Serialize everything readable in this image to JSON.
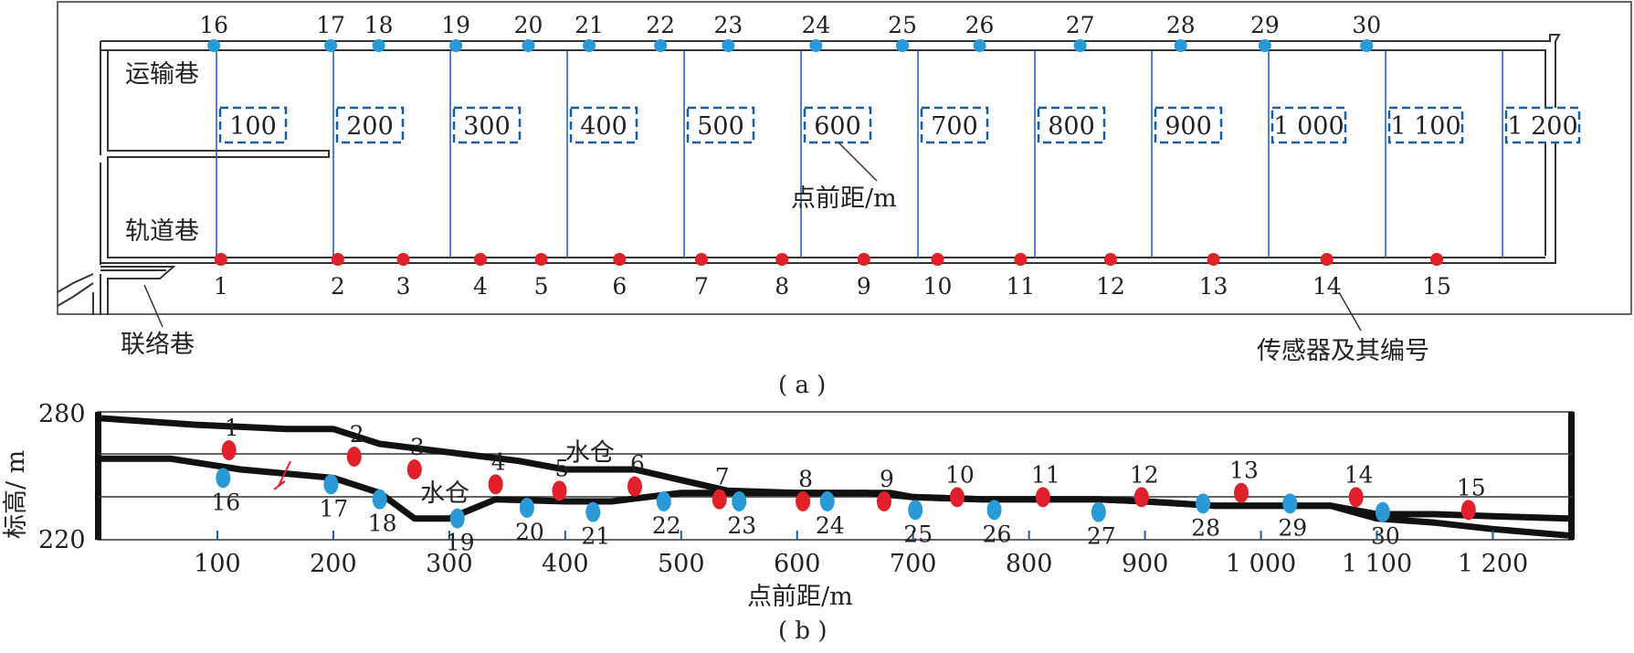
{
  "panel_a": {
    "caption": "( a )",
    "labels": {
      "transport_roadway": "运输巷",
      "track_roadway": "轨道巷",
      "link_roadway": "联络巷",
      "distance_unit": "点前距/m",
      "sensor_label": "传感器及其编号"
    },
    "distance_marks": [
      "100",
      "200",
      "300",
      "400",
      "500",
      "600",
      "700",
      "800",
      "900",
      "1 000",
      "1 100",
      "1 200"
    ],
    "top_sensors": [
      {
        "id": "16",
        "pos": 97
      },
      {
        "id": "17",
        "pos": 197
      },
      {
        "id": "18",
        "pos": 238
      },
      {
        "id": "19",
        "pos": 304
      },
      {
        "id": "20",
        "pos": 366
      },
      {
        "id": "21",
        "pos": 418
      },
      {
        "id": "22",
        "pos": 479
      },
      {
        "id": "23",
        "pos": 537
      },
      {
        "id": "24",
        "pos": 612
      },
      {
        "id": "25",
        "pos": 686
      },
      {
        "id": "26",
        "pos": 752
      },
      {
        "id": "27",
        "pos": 838
      },
      {
        "id": "28",
        "pos": 924
      },
      {
        "id": "29",
        "pos": 996
      },
      {
        "id": "30",
        "pos": 1083
      }
    ],
    "bottom_sensors": [
      {
        "id": "1",
        "pos": 103
      },
      {
        "id": "2",
        "pos": 203
      },
      {
        "id": "3",
        "pos": 259
      },
      {
        "id": "4",
        "pos": 325
      },
      {
        "id": "5",
        "pos": 377
      },
      {
        "id": "6",
        "pos": 444
      },
      {
        "id": "7",
        "pos": 514
      },
      {
        "id": "8",
        "pos": 583
      },
      {
        "id": "9",
        "pos": 653
      },
      {
        "id": "10",
        "pos": 716
      },
      {
        "id": "11",
        "pos": 787
      },
      {
        "id": "12",
        "pos": 864
      },
      {
        "id": "13",
        "pos": 952
      },
      {
        "id": "14",
        "pos": 1049
      },
      {
        "id": "15",
        "pos": 1143
      }
    ]
  },
  "panel_b": {
    "caption": "( b )",
    "xlabel": "点前距/m",
    "ylabel": "标高/ m",
    "ylim": [
      220,
      280
    ],
    "xlim": [
      0,
      1265
    ],
    "yticks": [
      "280",
      "220"
    ],
    "xticks": [
      {
        "label": "100",
        "value": 100
      },
      {
        "label": "200",
        "value": 200
      },
      {
        "label": "300",
        "value": 300
      },
      {
        "label": "400",
        "value": 400
      },
      {
        "label": "500",
        "value": 500
      },
      {
        "label": "600",
        "value": 600
      },
      {
        "label": "700",
        "value": 700
      },
      {
        "label": "800",
        "value": 800
      },
      {
        "label": "900",
        "value": 900
      },
      {
        "label": "1 000",
        "value": 1000
      },
      {
        "label": "1 100",
        "value": 1100
      },
      {
        "label": "1 200",
        "value": 1200
      }
    ],
    "annotations": [
      {
        "text": "水仓",
        "x": 400,
        "y": 257
      },
      {
        "text": "水仓",
        "x": 275,
        "y": 238
      }
    ],
    "track_profile": [
      [
        0,
        277
      ],
      [
        80,
        274
      ],
      [
        160,
        272
      ],
      [
        200,
        272
      ],
      [
        240,
        265
      ],
      [
        300,
        261
      ],
      [
        360,
        257
      ],
      [
        400,
        253
      ],
      [
        430,
        253
      ],
      [
        460,
        253
      ],
      [
        500,
        248
      ],
      [
        540,
        243
      ],
      [
        600,
        242
      ],
      [
        660,
        242
      ],
      [
        700,
        240
      ],
      [
        760,
        239
      ],
      [
        800,
        239
      ],
      [
        860,
        239
      ],
      [
        900,
        238
      ],
      [
        960,
        236
      ],
      [
        1000,
        236
      ],
      [
        1060,
        236
      ],
      [
        1100,
        232
      ],
      [
        1150,
        232
      ],
      [
        1200,
        231
      ],
      [
        1265,
        230
      ]
    ],
    "transport_profile": [
      [
        0,
        258
      ],
      [
        60,
        258
      ],
      [
        120,
        253
      ],
      [
        200,
        249
      ],
      [
        240,
        242
      ],
      [
        270,
        230
      ],
      [
        300,
        230
      ],
      [
        340,
        239
      ],
      [
        400,
        238
      ],
      [
        440,
        238
      ],
      [
        500,
        242
      ],
      [
        560,
        242
      ],
      [
        620,
        242
      ],
      [
        680,
        242
      ],
      [
        700,
        240
      ],
      [
        760,
        239
      ],
      [
        800,
        239
      ],
      [
        860,
        239
      ],
      [
        900,
        238
      ],
      [
        960,
        236
      ],
      [
        1000,
        236
      ],
      [
        1060,
        236
      ],
      [
        1100,
        230
      ],
      [
        1150,
        228
      ],
      [
        1200,
        225
      ],
      [
        1265,
        222
      ]
    ],
    "red_sensors": [
      {
        "id": "1",
        "x": 110,
        "y": 262
      },
      {
        "id": "2",
        "x": 218,
        "y": 259
      },
      {
        "id": "3",
        "x": 270,
        "y": 253
      },
      {
        "id": "4",
        "x": 340,
        "y": 246
      },
      {
        "id": "5",
        "x": 395,
        "y": 243
      },
      {
        "id": "6",
        "x": 460,
        "y": 245
      },
      {
        "id": "7",
        "x": 533,
        "y": 239
      },
      {
        "id": "8",
        "x": 605,
        "y": 238
      },
      {
        "id": "9",
        "x": 675,
        "y": 238
      },
      {
        "id": "10",
        "x": 738,
        "y": 240
      },
      {
        "id": "11",
        "x": 812,
        "y": 240
      },
      {
        "id": "12",
        "x": 897,
        "y": 240
      },
      {
        "id": "13",
        "x": 983,
        "y": 242
      },
      {
        "id": "14",
        "x": 1082,
        "y": 240
      },
      {
        "id": "15",
        "x": 1179,
        "y": 234
      }
    ],
    "blue_sensors": [
      {
        "id": "16",
        "x": 105,
        "y": 249
      },
      {
        "id": "17",
        "x": 198,
        "y": 246
      },
      {
        "id": "18",
        "x": 240,
        "y": 239
      },
      {
        "id": "19",
        "x": 307,
        "y": 230
      },
      {
        "id": "20",
        "x": 367,
        "y": 235
      },
      {
        "id": "21",
        "x": 424,
        "y": 233
      },
      {
        "id": "22",
        "x": 485,
        "y": 238
      },
      {
        "id": "23",
        "x": 550,
        "y": 238
      },
      {
        "id": "24",
        "x": 626,
        "y": 238
      },
      {
        "id": "25",
        "x": 702,
        "y": 234
      },
      {
        "id": "26",
        "x": 770,
        "y": 234
      },
      {
        "id": "27",
        "x": 860,
        "y": 233
      },
      {
        "id": "28",
        "x": 950,
        "y": 237
      },
      {
        "id": "29",
        "x": 1025,
        "y": 237
      },
      {
        "id": "30",
        "x": 1105,
        "y": 233
      }
    ],
    "colors": {
      "red_sensor": "#e0202a",
      "blue_sensor": "#2a9ad6",
      "grid": "#1b5d9e"
    }
  }
}
